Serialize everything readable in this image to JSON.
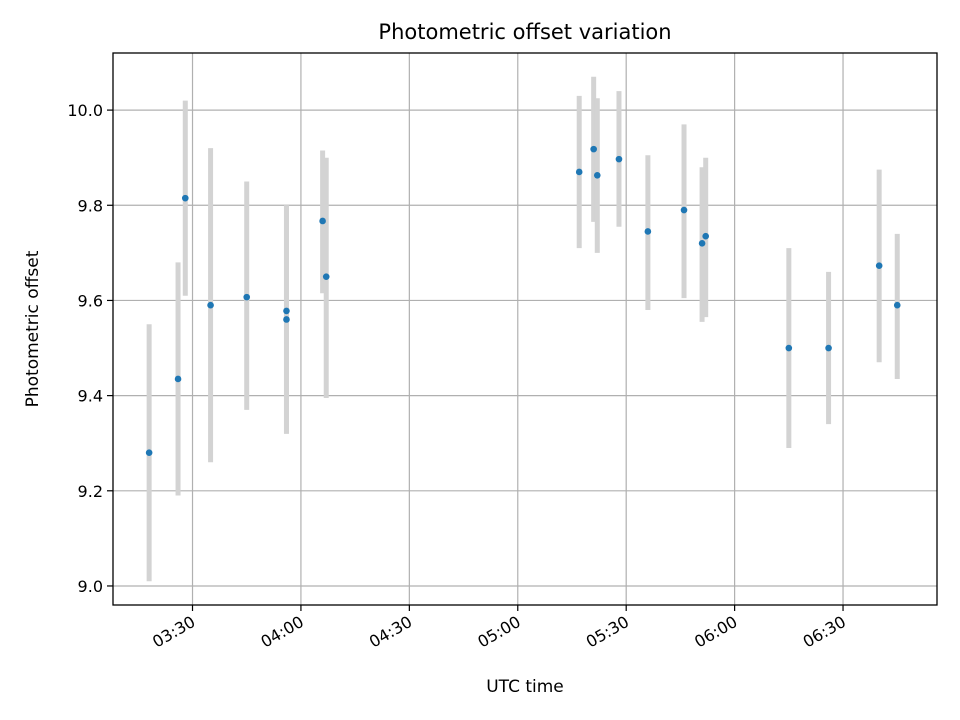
{
  "chart_data": {
    "type": "scatter",
    "title": "Photometric offset variation",
    "xlabel": "UTC time",
    "ylabel": "Photometric offset",
    "xlim": [
      "03:08",
      "06:56"
    ],
    "ylim": [
      8.96,
      10.12
    ],
    "x_ticks": [
      "03:30",
      "04:00",
      "04:30",
      "05:00",
      "05:30",
      "06:00",
      "06:30"
    ],
    "y_ticks": [
      9.0,
      9.2,
      9.4,
      9.6,
      9.8,
      10.0
    ],
    "y_tick_labels": [
      "9.0",
      "9.2",
      "9.4",
      "9.6",
      "9.8",
      "10.0"
    ],
    "grid": true,
    "colors": {
      "points": "#1f77b4",
      "error_bars": "#d3d3d3",
      "grid": "#b0b0b0"
    },
    "points": [
      {
        "x": "03:18",
        "y": 9.28,
        "err_low": 9.01,
        "err_high": 9.55
      },
      {
        "x": "03:26",
        "y": 9.435,
        "err_low": 9.19,
        "err_high": 9.68
      },
      {
        "x": "03:28",
        "y": 9.815,
        "err_low": 9.61,
        "err_high": 10.02
      },
      {
        "x": "03:35",
        "y": 9.59,
        "err_low": 9.26,
        "err_high": 9.92
      },
      {
        "x": "03:45",
        "y": 9.607,
        "err_low": 9.37,
        "err_high": 9.85
      },
      {
        "x": "03:56",
        "y": 9.578,
        "err_low": 9.32,
        "err_high": 9.8
      },
      {
        "x": "03:56",
        "y": 9.56,
        "err_low": 9.32,
        "err_high": 9.8
      },
      {
        "x": "04:06",
        "y": 9.767,
        "err_low": 9.615,
        "err_high": 9.915
      },
      {
        "x": "04:07",
        "y": 9.65,
        "err_low": 9.395,
        "err_high": 9.9
      },
      {
        "x": "05:17",
        "y": 9.87,
        "err_low": 9.71,
        "err_high": 10.03
      },
      {
        "x": "05:21",
        "y": 9.918,
        "err_low": 9.765,
        "err_high": 10.07
      },
      {
        "x": "05:22",
        "y": 9.863,
        "err_low": 9.7,
        "err_high": 10.025
      },
      {
        "x": "05:28",
        "y": 9.897,
        "err_low": 9.755,
        "err_high": 10.04
      },
      {
        "x": "05:36",
        "y": 9.745,
        "err_low": 9.58,
        "err_high": 9.905
      },
      {
        "x": "05:46",
        "y": 9.79,
        "err_low": 9.605,
        "err_high": 9.97
      },
      {
        "x": "05:51",
        "y": 9.72,
        "err_low": 9.555,
        "err_high": 9.88
      },
      {
        "x": "05:52",
        "y": 9.735,
        "err_low": 9.565,
        "err_high": 9.9
      },
      {
        "x": "06:15",
        "y": 9.5,
        "err_low": 9.29,
        "err_high": 9.71
      },
      {
        "x": "06:26",
        "y": 9.5,
        "err_low": 9.34,
        "err_high": 9.66
      },
      {
        "x": "06:40",
        "y": 9.673,
        "err_low": 9.47,
        "err_high": 9.875
      },
      {
        "x": "06:45",
        "y": 9.59,
        "err_low": 9.435,
        "err_high": 9.74
      }
    ]
  }
}
